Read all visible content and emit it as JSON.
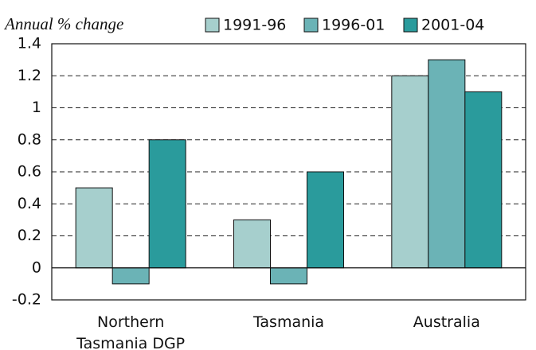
{
  "chart_data": {
    "type": "bar",
    "y_axis_label": "Annual % change",
    "categories": [
      "Northern Tasmania DGP",
      "Tasmania",
      "Australia"
    ],
    "series": [
      {
        "name": "1991-96",
        "color": "#a6cfcd",
        "values": [
          0.5,
          0.3,
          1.2
        ]
      },
      {
        "name": "1996-01",
        "color": "#6bb3b6",
        "values": [
          -0.1,
          -0.1,
          1.3
        ]
      },
      {
        "name": "2001-04",
        "color": "#2a9b9c",
        "values": [
          0.8,
          0.6,
          1.1
        ]
      }
    ],
    "ylim": [
      -0.2,
      1.4
    ],
    "yticks": [
      -0.2,
      0,
      0.2,
      0.4,
      0.6,
      0.8,
      1,
      1.2,
      1.4
    ],
    "grid": true,
    "legend": "top-right"
  }
}
